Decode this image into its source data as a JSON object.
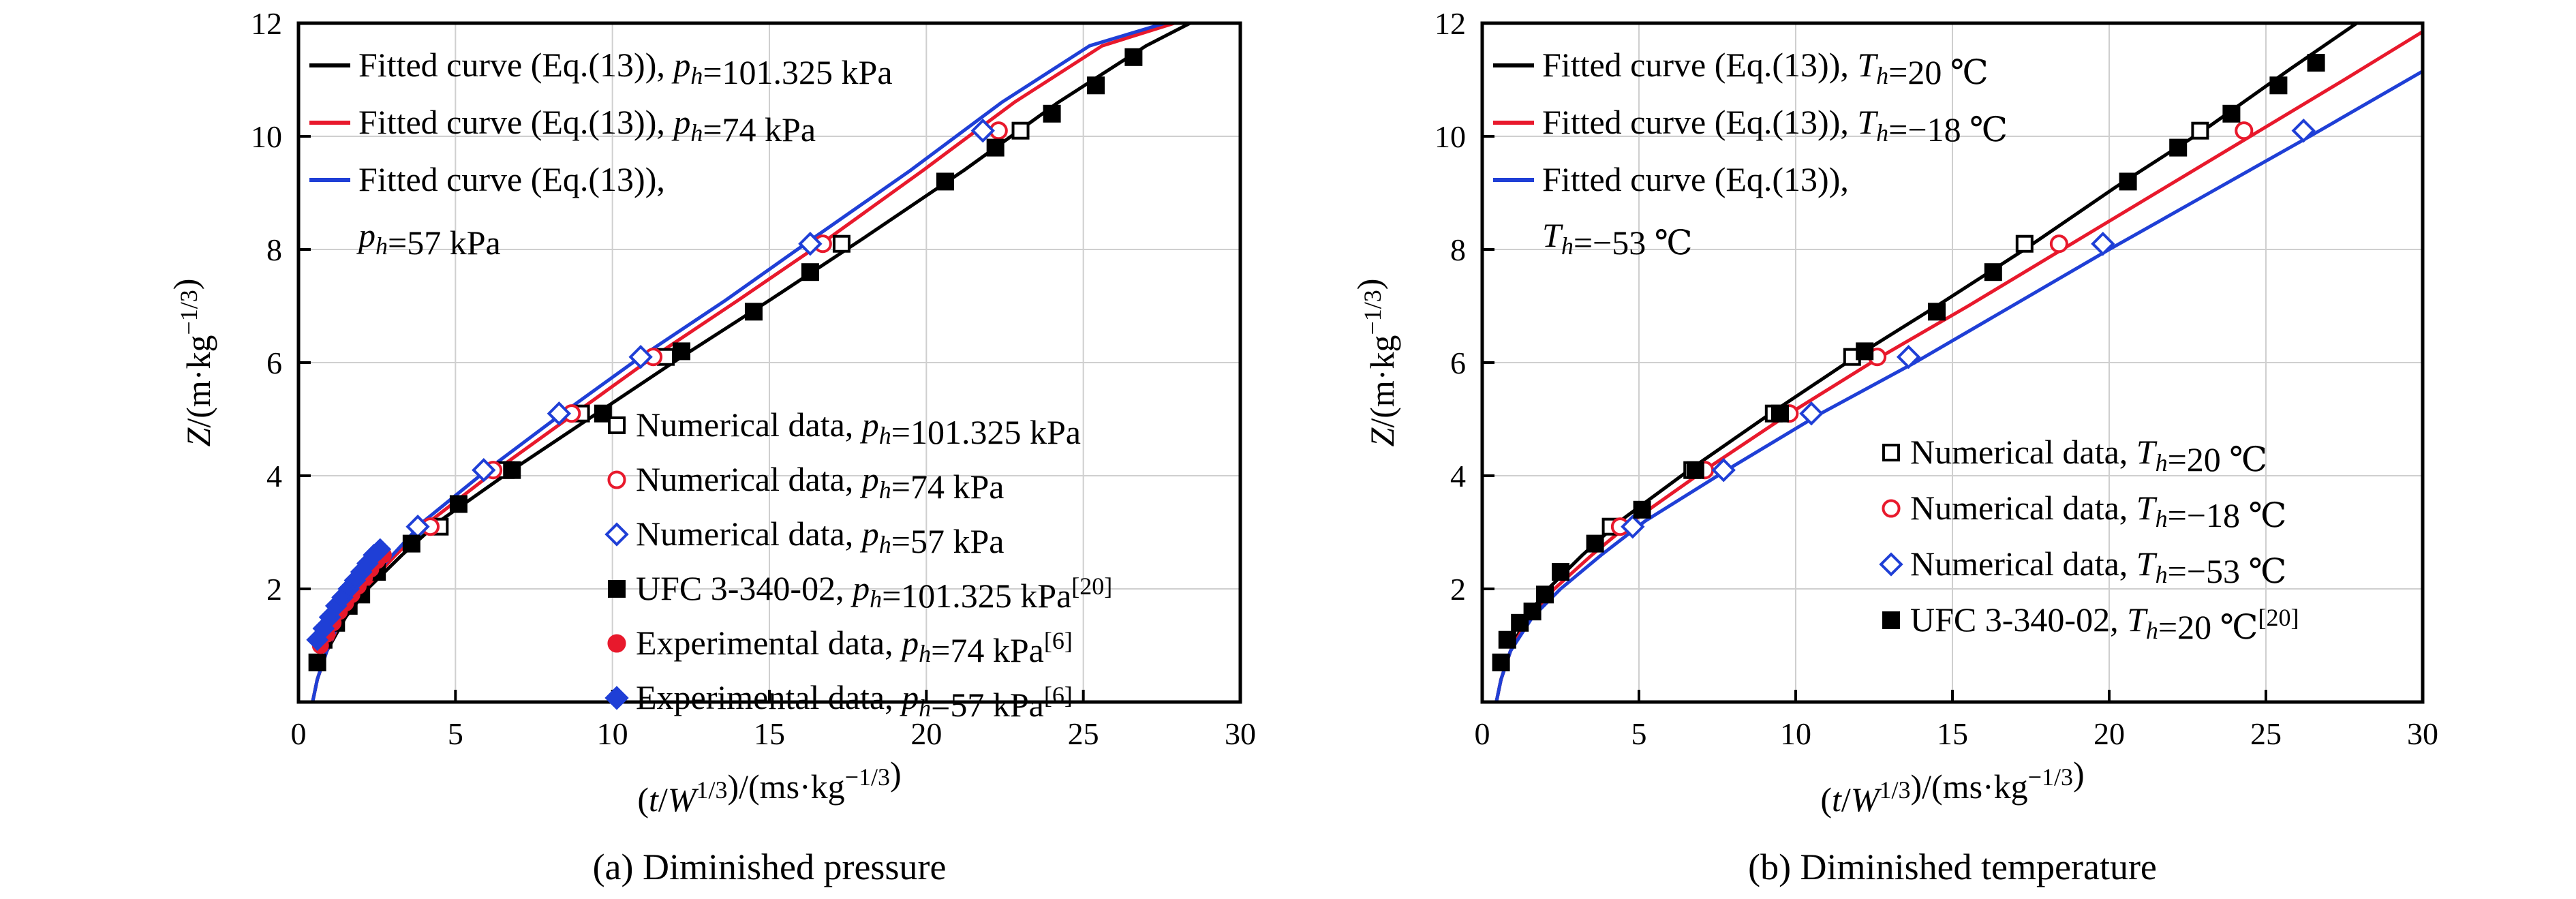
{
  "chart_data": [
    {
      "type": "line",
      "caption": "(a) Diminished pressure",
      "xlabel": "(t/W1/3)/(ms·kg−1/3)",
      "ylabel": "Z/(m·kg−1/3)",
      "xlim": [
        0,
        30
      ],
      "ylim": [
        0,
        12
      ],
      "x_ticks": [
        "0",
        "5",
        "10",
        "15",
        "20",
        "25",
        "30"
      ],
      "y_ticks": [
        "2",
        "4",
        "6",
        "8",
        "10",
        "12"
      ],
      "grid": "major",
      "fit_legend": [
        {
          "text": "Fitted curve (Eq.(13)), ph=101.325 kPa",
          "color": "#000000"
        },
        {
          "text": "Fitted curve (Eq.(13)), ph=74 kPa",
          "color": "#e8192c"
        },
        {
          "text": "Fitted curve (Eq.(13)), ph=57 kPa",
          "color": "#1f3fd6"
        }
      ],
      "marker_legend": [
        {
          "text": "Numerical data, ph=101.325 kPa",
          "marker": "open-square",
          "color": "#000000"
        },
        {
          "text": "Numerical data, ph=74 kPa",
          "marker": "open-circle",
          "color": "#e8192c"
        },
        {
          "text": "Numerical data, ph=57 kPa",
          "marker": "open-diamond",
          "color": "#1f3fd6"
        },
        {
          "text": "UFC 3-340-02, ph=101.325 kPa[20]",
          "marker": "filled-square",
          "color": "#000000"
        },
        {
          "text": "Experimental data, ph=74 kPa[6]",
          "marker": "filled-circle",
          "color": "#e8192c"
        },
        {
          "text": "Experimental data, ph=57 kPa[6]",
          "marker": "filled-diamond",
          "color": "#1f3fd6"
        }
      ],
      "series": [
        {
          "name": "Fitted curve (Eq.(13)), ph=101.325 kPa",
          "kind": "line",
          "color": "#000000",
          "x": [
            0.45,
            0.6,
            0.9,
            1.5,
            2.2,
            3.3,
            4.5,
            6.8,
            9.5,
            12.2,
            15.0,
            18.0,
            21.2,
            24.2,
            27.0,
            28.4
          ],
          "y": [
            0.0,
            0.4,
            0.9,
            1.5,
            2.0,
            2.6,
            3.2,
            4.1,
            5.1,
            6.1,
            7.1,
            8.2,
            9.4,
            10.6,
            11.6,
            12.0
          ]
        },
        {
          "name": "Fitted curve (Eq.(13)), ph=74 kPa",
          "kind": "line",
          "color": "#e8192c",
          "x": [
            0.45,
            0.6,
            0.9,
            1.4,
            2.1,
            3.1,
            4.2,
            6.3,
            8.8,
            11.3,
            14.0,
            16.9,
            19.9,
            22.8,
            25.6,
            27.9
          ],
          "y": [
            0.0,
            0.4,
            0.9,
            1.5,
            2.0,
            2.6,
            3.2,
            4.1,
            5.1,
            6.1,
            7.1,
            8.2,
            9.4,
            10.6,
            11.6,
            12.0
          ]
        },
        {
          "name": "Fitted curve (Eq.(13)), ph=57 kPa",
          "kind": "line",
          "color": "#1f3fd6",
          "x": [
            0.45,
            0.6,
            0.9,
            1.35,
            2.0,
            3.0,
            4.0,
            6.0,
            8.4,
            10.9,
            13.6,
            16.4,
            19.5,
            22.4,
            25.2,
            27.6
          ],
          "y": [
            0.0,
            0.4,
            0.9,
            1.5,
            2.0,
            2.6,
            3.2,
            4.1,
            5.1,
            6.1,
            7.1,
            8.2,
            9.4,
            10.6,
            11.6,
            12.0
          ]
        },
        {
          "name": "Numerical data, ph=101.325 kPa",
          "kind": "points",
          "marker": "open-square",
          "color": "#000000",
          "x": [
            4.5,
            6.6,
            9.0,
            11.7,
            17.3,
            23.0
          ],
          "y": [
            3.1,
            4.1,
            5.1,
            6.1,
            8.1,
            10.1
          ]
        },
        {
          "name": "Numerical data, ph=74 kPa",
          "kind": "points",
          "marker": "open-circle",
          "color": "#e8192c",
          "x": [
            4.2,
            6.2,
            8.7,
            11.3,
            16.7,
            22.3
          ],
          "y": [
            3.1,
            4.1,
            5.1,
            6.1,
            8.1,
            10.1
          ]
        },
        {
          "name": "Numerical data, ph=57 kPa",
          "kind": "points",
          "marker": "open-diamond",
          "color": "#1f3fd6",
          "x": [
            3.8,
            5.9,
            8.3,
            10.9,
            16.3,
            21.8
          ],
          "y": [
            3.1,
            4.1,
            5.1,
            6.1,
            8.1,
            10.1
          ]
        },
        {
          "name": "UFC 3-340-02, ph=101.325 kPa[20]",
          "kind": "points",
          "marker": "filled-square",
          "color": "#000000",
          "x": [
            0.6,
            0.8,
            1.2,
            1.6,
            2.0,
            2.5,
            3.6,
            5.1,
            6.8,
            9.7,
            12.2,
            14.5,
            16.3,
            20.6,
            22.2,
            24.0,
            25.4,
            26.6
          ],
          "y": [
            0.7,
            1.1,
            1.4,
            1.7,
            1.9,
            2.3,
            2.8,
            3.5,
            4.1,
            5.1,
            6.2,
            6.9,
            7.6,
            9.2,
            9.8,
            10.4,
            10.9,
            11.4
          ]
        },
        {
          "name": "Experimental data, ph=74 kPa[6]",
          "kind": "points",
          "marker": "filled-circle",
          "color": "#e8192c",
          "x": [
            0.7,
            0.9,
            1.1,
            1.3,
            1.5,
            1.7,
            1.9,
            2.1,
            2.3,
            2.5,
            2.7
          ],
          "y": [
            1.0,
            1.2,
            1.4,
            1.6,
            1.75,
            1.9,
            2.05,
            2.2,
            2.35,
            2.5,
            2.6
          ]
        },
        {
          "name": "Experimental data, ph=57 kPa[6]",
          "kind": "points",
          "marker": "filled-diamond",
          "color": "#1f3fd6",
          "x": [
            0.6,
            0.8,
            1.0,
            1.2,
            1.4,
            1.6,
            1.8,
            2.0,
            2.2,
            2.4,
            2.6
          ],
          "y": [
            1.1,
            1.3,
            1.5,
            1.7,
            1.85,
            2.0,
            2.15,
            2.3,
            2.45,
            2.6,
            2.7
          ]
        }
      ]
    },
    {
      "type": "line",
      "caption": "(b) Diminished temperature",
      "xlabel": "(t/W1/3)/(ms·kg−1/3)",
      "ylabel": "Z/(m·kg−1/3)",
      "xlim": [
        0,
        30
      ],
      "ylim": [
        0,
        12
      ],
      "x_ticks": [
        "0",
        "5",
        "10",
        "15",
        "20",
        "25",
        "30"
      ],
      "y_ticks": [
        "2",
        "4",
        "6",
        "8",
        "10",
        "12"
      ],
      "grid": "major",
      "fit_legend": [
        {
          "text": "Fitted curve (Eq.(13)), Th=20 ℃",
          "color": "#000000"
        },
        {
          "text": "Fitted curve (Eq.(13)), Th=−18 ℃",
          "color": "#e8192c"
        },
        {
          "text": "Fitted curve (Eq.(13)), Th=−53 ℃",
          "color": "#1f3fd6"
        }
      ],
      "marker_legend": [
        {
          "text": "Numerical data, Th=20 ℃",
          "marker": "open-square",
          "color": "#000000"
        },
        {
          "text": "Numerical data, Th=−18 ℃",
          "marker": "open-circle",
          "color": "#e8192c"
        },
        {
          "text": "Numerical data, Th=−53 ℃",
          "marker": "open-diamond",
          "color": "#1f3fd6"
        },
        {
          "text": "UFC 3-340-02, Th=20 ℃[20]",
          "marker": "filled-square",
          "color": "#000000"
        }
      ],
      "series": [
        {
          "name": "Fitted curve (Eq.(13)), Th=20 ℃",
          "kind": "line",
          "color": "#000000",
          "x": [
            0.45,
            0.6,
            0.9,
            1.4,
            2.1,
            3.2,
            4.4,
            6.6,
            9.2,
            11.9,
            14.5,
            17.3,
            20.2,
            23.0,
            25.8,
            27.9
          ],
          "y": [
            0.0,
            0.4,
            0.9,
            1.5,
            2.0,
            2.6,
            3.2,
            4.1,
            5.1,
            6.1,
            7.0,
            8.0,
            9.1,
            10.1,
            11.2,
            12.0
          ]
        },
        {
          "name": "Fitted curve (Eq.(13)), Th=−18 ℃",
          "kind": "line",
          "color": "#e8192c",
          "x": [
            0.45,
            0.6,
            0.9,
            1.5,
            2.3,
            3.5,
            4.8,
            7.1,
            9.8,
            12.7,
            15.5,
            18.5,
            21.5,
            24.5,
            27.5,
            30.0
          ],
          "y": [
            0.0,
            0.4,
            0.9,
            1.5,
            2.0,
            2.6,
            3.2,
            4.1,
            5.1,
            6.1,
            7.0,
            8.0,
            9.0,
            10.0,
            11.0,
            11.85
          ]
        },
        {
          "name": "Fitted curve (Eq.(13)), Th=−53 ℃",
          "kind": "line",
          "color": "#1f3fd6",
          "x": [
            0.45,
            0.6,
            0.9,
            1.6,
            2.5,
            3.8,
            5.2,
            7.8,
            10.8,
            13.8,
            16.9,
            20.0,
            23.2,
            26.4,
            30.0
          ],
          "y": [
            0.0,
            0.4,
            0.9,
            1.5,
            2.0,
            2.6,
            3.2,
            4.1,
            5.1,
            6.0,
            7.0,
            8.0,
            9.0,
            10.0,
            11.15
          ]
        },
        {
          "name": "Numerical data, Th=20 ℃",
          "kind": "points",
          "marker": "open-square",
          "color": "#000000",
          "x": [
            4.1,
            6.7,
            9.3,
            11.8,
            17.3,
            22.9
          ],
          "y": [
            3.1,
            4.1,
            5.1,
            6.1,
            8.1,
            10.1
          ]
        },
        {
          "name": "Numerical data, Th=−18 ℃",
          "kind": "points",
          "marker": "open-circle",
          "color": "#e8192c",
          "x": [
            4.4,
            7.1,
            9.8,
            12.6,
            18.4,
            24.3
          ],
          "y": [
            3.1,
            4.1,
            5.1,
            6.1,
            8.1,
            10.1
          ]
        },
        {
          "name": "Numerical data, Th=−53 ℃",
          "kind": "points",
          "marker": "open-diamond",
          "color": "#1f3fd6",
          "x": [
            4.8,
            7.7,
            10.5,
            13.6,
            19.8,
            26.2
          ],
          "y": [
            3.1,
            4.1,
            5.1,
            6.1,
            8.1,
            10.1
          ]
        },
        {
          "name": "UFC 3-340-02, Th=20 ℃[20]",
          "kind": "points",
          "marker": "filled-square",
          "color": "#000000",
          "x": [
            0.6,
            0.8,
            1.2,
            1.6,
            2.0,
            2.5,
            3.6,
            5.1,
            6.8,
            9.5,
            12.2,
            14.5,
            16.3,
            20.6,
            22.2,
            23.9,
            25.4,
            26.6
          ],
          "y": [
            0.7,
            1.1,
            1.4,
            1.6,
            1.9,
            2.3,
            2.8,
            3.4,
            4.1,
            5.1,
            6.2,
            6.9,
            7.6,
            9.2,
            9.8,
            10.4,
            10.9,
            11.3
          ]
        }
      ]
    }
  ]
}
